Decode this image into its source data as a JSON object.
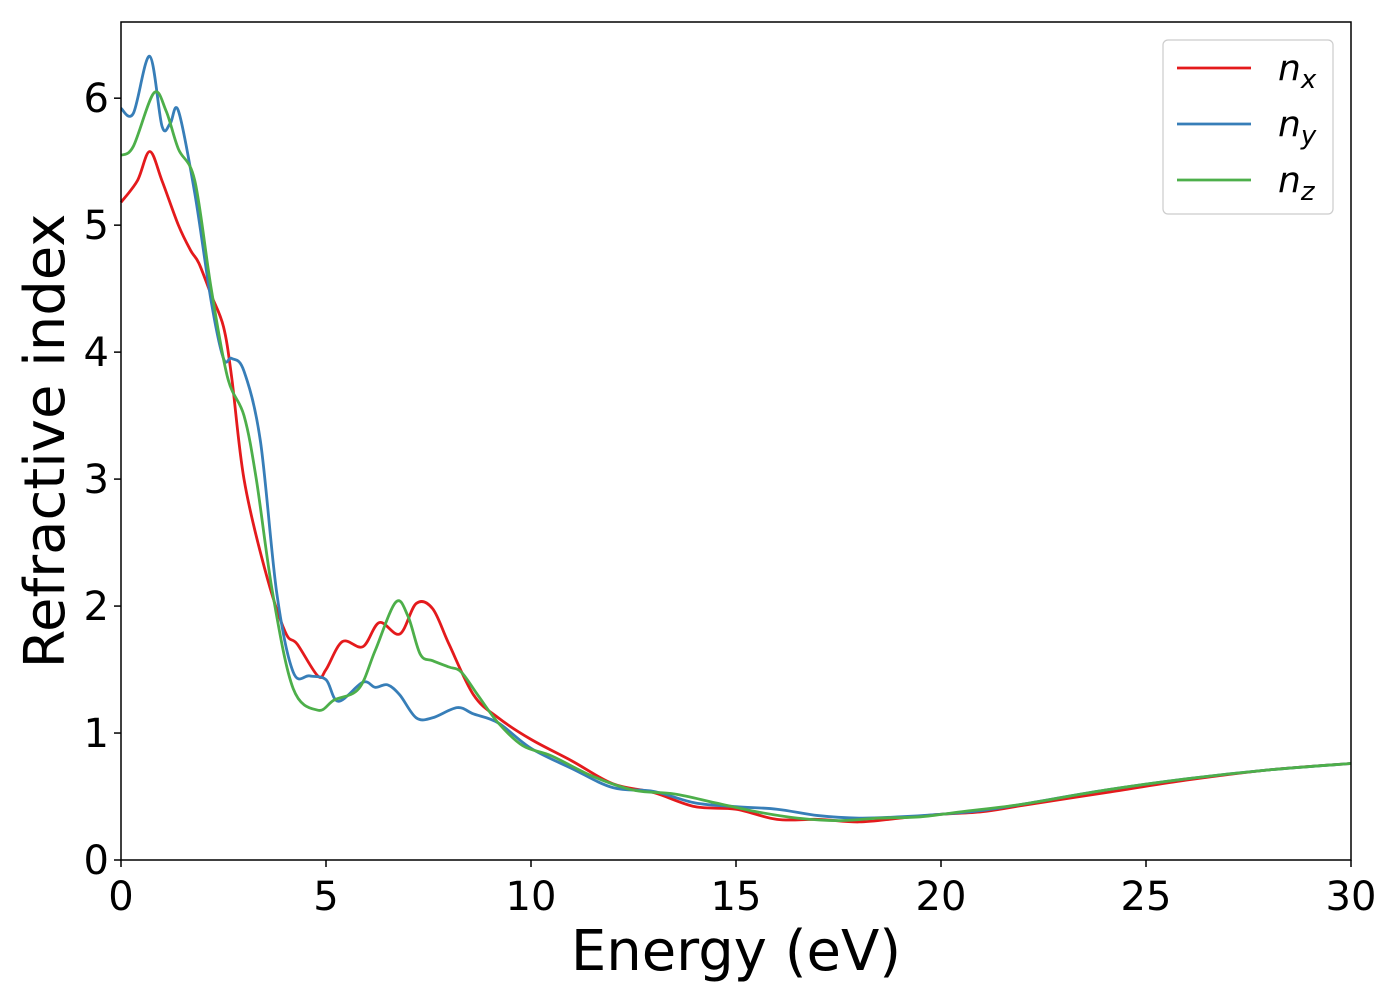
{
  "chart_data": {
    "type": "line",
    "title": "",
    "xlabel": "Energy (eV)",
    "ylabel": "Refractive index",
    "xlim": [
      0,
      30
    ],
    "ylim": [
      0,
      6.6
    ],
    "xticks": [
      0,
      5,
      10,
      15,
      20,
      25,
      30
    ],
    "yticks": [
      0,
      1,
      2,
      3,
      4,
      5,
      6
    ],
    "grid": false,
    "legend_position": "top-right",
    "series": [
      {
        "name": "n",
        "subscript": "x",
        "color": "#e41a1c",
        "x": [
          0,
          0.4,
          0.7,
          1.0,
          1.4,
          1.7,
          1.9,
          2.2,
          2.5,
          2.7,
          3.0,
          3.5,
          4.0,
          4.3,
          4.8,
          5.0,
          5.4,
          5.9,
          6.3,
          6.8,
          7.2,
          7.6,
          8.0,
          8.6,
          9.2,
          10.0,
          11.0,
          12.0,
          13.0,
          14.0,
          15.0,
          16.0,
          17.0,
          18.0,
          19.0,
          20.0,
          21.0,
          22.0,
          24.0,
          26.0,
          28.0,
          30.0
        ],
        "y": [
          5.18,
          5.35,
          5.58,
          5.35,
          5.0,
          4.8,
          4.7,
          4.45,
          4.2,
          3.8,
          3.0,
          2.3,
          1.8,
          1.7,
          1.45,
          1.5,
          1.72,
          1.68,
          1.87,
          1.78,
          2.02,
          1.98,
          1.7,
          1.3,
          1.12,
          0.95,
          0.78,
          0.6,
          0.53,
          0.42,
          0.4,
          0.32,
          0.32,
          0.3,
          0.33,
          0.36,
          0.38,
          0.43,
          0.53,
          0.63,
          0.71,
          0.76
        ]
      },
      {
        "name": "n",
        "subscript": "y",
        "color": "#377eb8",
        "x": [
          0,
          0.3,
          0.7,
          1.0,
          1.2,
          1.4,
          1.8,
          2.2,
          2.5,
          2.7,
          3.0,
          3.4,
          3.8,
          4.2,
          4.6,
          5.0,
          5.3,
          5.9,
          6.2,
          6.5,
          6.8,
          7.2,
          7.6,
          8.2,
          8.6,
          9.2,
          10.0,
          11.0,
          12.0,
          13.0,
          14.0,
          15.0,
          16.0,
          17.0,
          18.0,
          19.0,
          20.0,
          21.0,
          22.0,
          24.0,
          26.0,
          28.0,
          30.0
        ],
        "y": [
          5.92,
          5.88,
          6.33,
          5.78,
          5.8,
          5.9,
          5.25,
          4.4,
          3.95,
          3.95,
          3.85,
          3.3,
          2.1,
          1.48,
          1.45,
          1.42,
          1.25,
          1.4,
          1.36,
          1.38,
          1.3,
          1.12,
          1.12,
          1.2,
          1.15,
          1.08,
          0.88,
          0.72,
          0.57,
          0.54,
          0.45,
          0.42,
          0.4,
          0.35,
          0.33,
          0.34,
          0.36,
          0.39,
          0.44,
          0.55,
          0.64,
          0.71,
          0.76
        ]
      },
      {
        "name": "n",
        "subscript": "z",
        "color": "#4daf4a",
        "x": [
          0,
          0.3,
          0.8,
          1.1,
          1.4,
          1.8,
          2.2,
          2.6,
          3.0,
          3.3,
          3.7,
          4.2,
          4.8,
          5.2,
          5.8,
          6.2,
          6.7,
          7.0,
          7.3,
          7.6,
          8.0,
          8.3,
          8.7,
          9.2,
          9.8,
          10.5,
          11.5,
          12.5,
          13.5,
          14.5,
          15.5,
          16.5,
          17.5,
          18.5,
          19.5,
          20.5,
          22.0,
          24.0,
          26.0,
          28.0,
          30.0
        ],
        "y": [
          5.55,
          5.62,
          6.04,
          5.9,
          5.6,
          5.35,
          4.5,
          3.8,
          3.5,
          3.0,
          2.1,
          1.35,
          1.18,
          1.26,
          1.35,
          1.65,
          2.03,
          1.92,
          1.62,
          1.57,
          1.52,
          1.48,
          1.3,
          1.08,
          0.9,
          0.82,
          0.66,
          0.55,
          0.52,
          0.45,
          0.38,
          0.33,
          0.31,
          0.33,
          0.34,
          0.38,
          0.44,
          0.55,
          0.64,
          0.71,
          0.76
        ]
      }
    ]
  }
}
